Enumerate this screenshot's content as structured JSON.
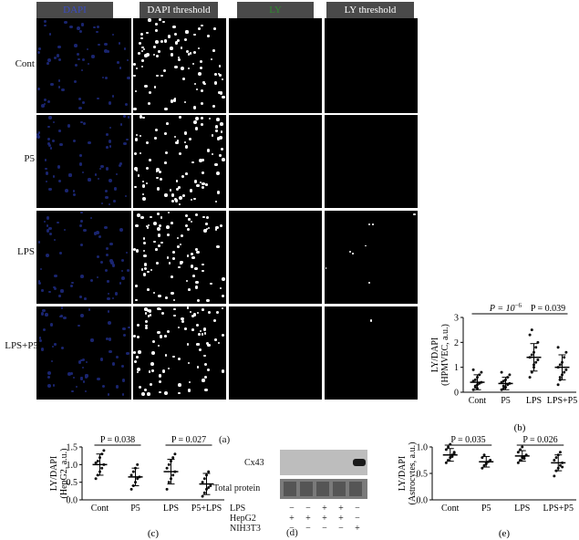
{
  "figure_a": {
    "columns": [
      "DAPI",
      "DAPI threshold",
      "LY",
      "LY threshold"
    ],
    "rows": [
      "Cont",
      "P5",
      "LPS",
      "LPS+P5"
    ],
    "label": "(a)"
  },
  "chart_data": [
    {
      "type": "scatter",
      "panel": "(b)",
      "ylabel": "LY/DAPI (HPMVEC, a.u.)",
      "ylabel_lines": [
        "LY/DAPI",
        "(HPMVEC, a.u.)"
      ],
      "categories": [
        "Cont",
        "P5",
        "LPS",
        "LPS+P5"
      ],
      "ylim": [
        0,
        3
      ],
      "yticks": [
        "0",
        "1",
        "2",
        "3"
      ],
      "means": [
        0.4,
        0.35,
        1.4,
        1.0
      ],
      "sd": [
        0.3,
        0.25,
        0.55,
        0.5
      ],
      "points": [
        [
          0.1,
          0.2,
          0.3,
          0.35,
          0.4,
          0.45,
          0.5,
          0.6,
          0.7,
          0.8,
          0.9,
          0.25,
          0.15
        ],
        [
          0.1,
          0.15,
          0.2,
          0.3,
          0.35,
          0.4,
          0.45,
          0.5,
          0.6,
          0.7,
          0.8,
          0.25
        ],
        [
          0.6,
          0.8,
          1.0,
          1.2,
          1.3,
          1.4,
          1.5,
          1.6,
          1.8,
          2.0,
          2.3,
          2.5,
          1.1
        ],
        [
          0.3,
          0.5,
          0.7,
          0.8,
          0.9,
          1.0,
          1.1,
          1.2,
          1.4,
          1.6,
          1.8,
          0.6
        ]
      ],
      "annotations": [
        {
          "text": "P = 10^−6",
          "p_base": "P = 10",
          "p_sup": "−6",
          "from": 0,
          "to": 2
        },
        {
          "text": "P = 0.039",
          "from": 2,
          "to": 3
        }
      ],
      "label": "(b)"
    },
    {
      "type": "scatter",
      "panel": "(c)",
      "ylabel": "LY/DAPI (HepG2, a.u.)",
      "ylabel_lines": [
        "LY/DAPI",
        "(HepG2, a.u.)"
      ],
      "categories": [
        "Cont",
        "P5",
        "LPS",
        "P5+LPS"
      ],
      "ylim": [
        0,
        1.5
      ],
      "yticks": [
        "0.0",
        "0.5",
        "1.0",
        "1.5"
      ],
      "means": [
        1.0,
        0.65,
        0.8,
        0.45
      ],
      "sd": [
        0.3,
        0.25,
        0.35,
        0.3
      ],
      "points": [
        [
          0.6,
          0.7,
          0.8,
          0.9,
          1.0,
          1.05,
          1.1,
          1.2,
          1.3,
          1.4
        ],
        [
          0.3,
          0.4,
          0.5,
          0.6,
          0.65,
          0.7,
          0.8,
          0.9,
          1.0
        ],
        [
          0.3,
          0.5,
          0.6,
          0.7,
          0.8,
          0.9,
          1.0,
          1.1,
          1.2,
          1.3
        ],
        [
          0.1,
          0.2,
          0.3,
          0.35,
          0.4,
          0.5,
          0.6,
          0.7,
          0.8
        ]
      ],
      "annotations": [
        {
          "text": "P = 0.038",
          "from": 0,
          "to": 1
        },
        {
          "text": "P = 0.027",
          "from": 2,
          "to": 3
        }
      ],
      "label": "(c)"
    },
    {
      "type": "scatter",
      "panel": "(e)",
      "ylabel": "LY/DAPI (Astrocytes, a.u.)",
      "ylabel_lines": [
        "LY/DAPI",
        "(Astrocytes, a.u.)"
      ],
      "categories": [
        "Cont",
        "P5",
        "LPS",
        "LPS+P5"
      ],
      "ylim": [
        0,
        1.0
      ],
      "yticks": [
        "0.0",
        "0.5",
        "1.0"
      ],
      "means": [
        0.85,
        0.72,
        0.83,
        0.7
      ],
      "sd": [
        0.12,
        0.1,
        0.1,
        0.15
      ],
      "points": [
        [
          0.7,
          0.75,
          0.8,
          0.85,
          0.9,
          0.95,
          1.0,
          1.05,
          0.82,
          0.88
        ],
        [
          0.6,
          0.65,
          0.7,
          0.72,
          0.75,
          0.8,
          0.85,
          0.68
        ],
        [
          0.7,
          0.75,
          0.8,
          0.82,
          0.85,
          0.9,
          0.95,
          1.0,
          0.78
        ],
        [
          0.45,
          0.55,
          0.6,
          0.65,
          0.7,
          0.75,
          0.8,
          0.85,
          0.9,
          0.62
        ]
      ],
      "annotations": [
        {
          "text": "P = 0.035",
          "from": 0,
          "to": 1
        },
        {
          "text": "P = 0.026",
          "from": 2,
          "to": 3
        }
      ],
      "label": "(e)"
    }
  ],
  "figure_d": {
    "blot_labels": [
      "Cx43",
      "Total protein"
    ],
    "conditions": [
      {
        "name": "LPS",
        "values": [
          "−",
          "−",
          "+",
          "+",
          "−"
        ]
      },
      {
        "name": "HepG2",
        "values": [
          "+",
          "+",
          "+",
          "+",
          "−"
        ]
      },
      {
        "name": "NIH3T3",
        "values": [
          "−",
          "−",
          "−",
          "−",
          "+"
        ]
      }
    ],
    "label": "(d)"
  }
}
